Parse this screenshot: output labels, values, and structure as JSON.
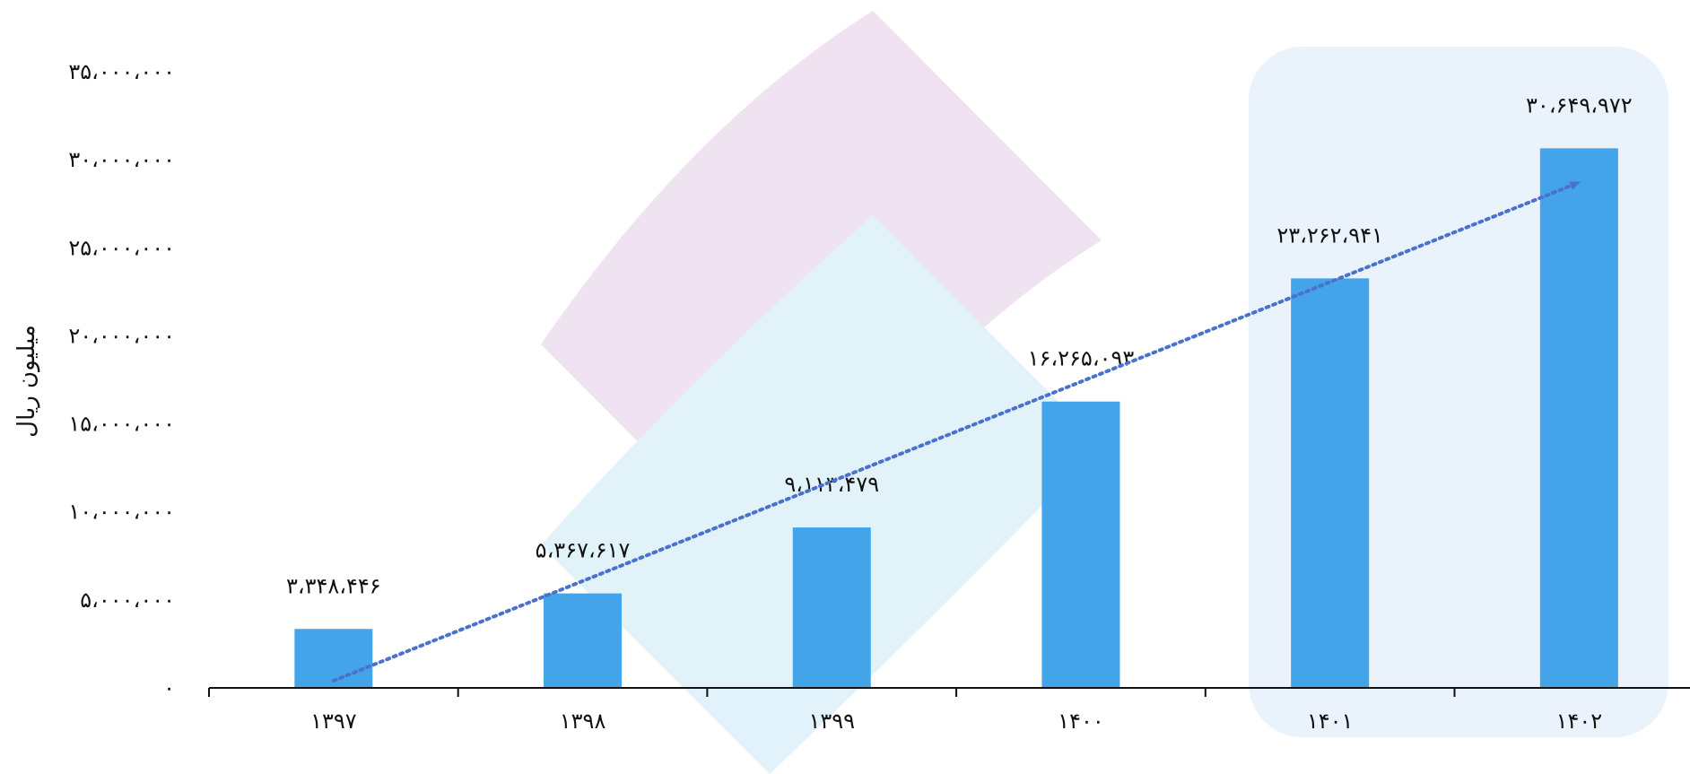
{
  "chart_data": {
    "type": "bar",
    "categories": [
      "۱۳۹۷",
      "۱۳۹۸",
      "۱۳۹۹",
      "۱۴۰۰",
      "۱۴۰۱",
      "۱۴۰۲"
    ],
    "values": [
      3348446,
      5367617,
      9113479,
      16265093,
      23262941,
      30649972
    ],
    "data_labels": [
      "۳،۳۴۸،۴۴۶",
      "۵،۳۶۷،۶۱۷",
      "۹،۱۱۳،۴۷۹",
      "۱۶،۲۶۵،۰۹۳",
      "۲۳،۲۶۲،۹۴۱",
      "۳۰،۶۴۹،۹۷۲"
    ],
    "ylabel": "میلیون ریال",
    "ylim": [
      0,
      35000000
    ],
    "y_ticks": [
      0,
      5000000,
      10000000,
      15000000,
      20000000,
      25000000,
      30000000,
      35000000
    ],
    "y_tick_labels": [
      "۰",
      "۵،۰۰۰،۰۰۰",
      "۱۰،۰۰۰،۰۰۰",
      "۱۵،۰۰۰،۰۰۰",
      "۲۰،۰۰۰،۰۰۰",
      "۲۵،۰۰۰،۰۰۰",
      "۳۰،۰۰۰،۰۰۰",
      "۳۵،۰۰۰،۰۰۰"
    ],
    "grid": false,
    "trend_arrow": true,
    "highlighted_categories": [
      "۱۴۰۱",
      "۱۴۰۲"
    ],
    "colors": {
      "bar": "#3a9fe8",
      "trend": "#4a72cc",
      "highlight": "#eaf3fc",
      "watermark_pink": "#eedff0",
      "watermark_blue": "#dff1f9"
    }
  }
}
